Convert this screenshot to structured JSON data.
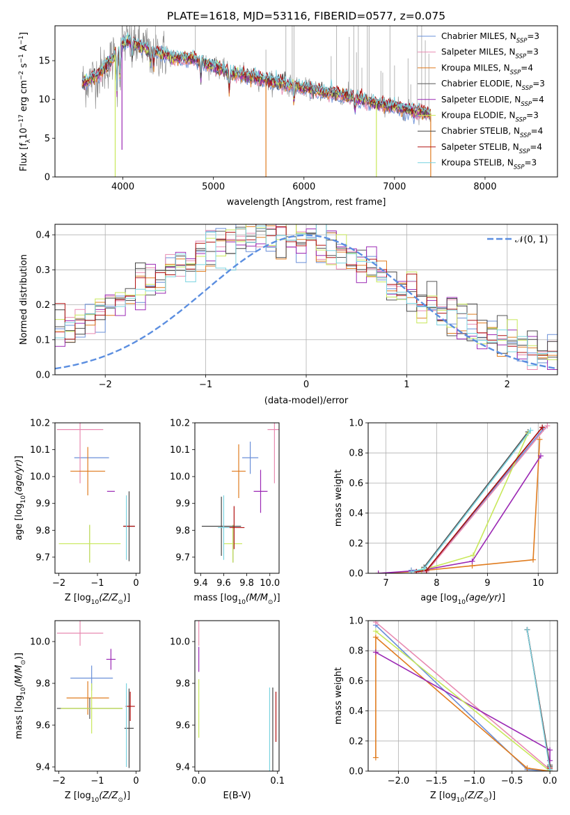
{
  "title": "PLATE=1618, MJD=53116, FIBERID=0577, z=0.075",
  "colors": {
    "Chabrier MILES": "#6a8fd8",
    "Salpeter MILES": "#e889b0",
    "Kroupa MILES": "#e07c1f",
    "Chabrier ELODIE": "#555555",
    "Salpeter ELODIE": "#9b28b4",
    "Kroupa ELODIE": "#c8e85a",
    "Chabrier STELIB": "#444444",
    "Salpeter STELIB": "#b01010",
    "Kroupa STELIB": "#7ad3e0",
    "observed": "#8c8c8c",
    "gauss": "#5b8ee0"
  },
  "chart_data": [
    {
      "type": "line",
      "xlabel": "wavelength [Angstrom, rest frame]",
      "ylabel": "Flux [f_λ10^-17 erg cm^-2 s^-1 A^-1]",
      "xlim": [
        3250,
        8800
      ],
      "ylim": [
        0,
        19.5
      ],
      "xticks": [
        4000,
        5000,
        6000,
        7000,
        8000
      ],
      "yticks": [
        0,
        5,
        10,
        15
      ],
      "legend_position": "top-right",
      "legend": [
        "Chabrier MILES, N_SSP=3",
        "Salpeter MILES, N_SSP=3",
        "Kroupa MILES, N_SSP=4",
        "Chabrier ELODIE, N_SSP=3",
        "Salpeter ELODIE, N_SSP=4",
        "Kroupa ELODIE, N_SSP=3",
        "Chabrier STELIB, N_SSP=4",
        "Salpeter STELIB, N_SSP=4",
        "Kroupa STELIB, N_SSP=3"
      ],
      "continuum": {
        "x": [
          3550,
          3700,
          3800,
          3900,
          4000,
          4050,
          4200,
          4400,
          4600,
          4800,
          5000,
          5200,
          5400,
          5600,
          5800,
          6000,
          6200,
          6400,
          6600,
          6800,
          7000,
          7200,
          7400
        ],
        "y": [
          12.0,
          13.0,
          14.0,
          15.5,
          17.2,
          17.6,
          16.8,
          16.0,
          15.3,
          15.2,
          14.3,
          13.4,
          13.0,
          12.4,
          12.0,
          11.5,
          11.0,
          10.6,
          10.0,
          9.5,
          9.0,
          8.5,
          8.2
        ]
      },
      "model_range": [
        3550,
        7400
      ],
      "observed_range": [
        3550,
        7400
      ]
    },
    {
      "type": "histogram",
      "xlabel": "(data-model)/error",
      "ylabel": "Normed distribution",
      "xlim": [
        -2.5,
        2.5
      ],
      "ylim": [
        0,
        0.43
      ],
      "xticks": [
        -2,
        -1,
        0,
        1,
        2
      ],
      "yticks": [
        0.0,
        0.1,
        0.2,
        0.3,
        0.4
      ],
      "grid": true,
      "legend_position": "top-right",
      "legend": [
        "𝒩(0, 1)"
      ],
      "bin_width": 0.1
    },
    {
      "type": "scatter",
      "xlabel": "Z [log10(Z/Z⊙)]",
      "ylabel": "age [log10(age/yr)]",
      "xlim": [
        -2.1,
        0.1
      ],
      "ylim": [
        9.64,
        10.2
      ],
      "xticks": [
        -2,
        -1,
        0
      ],
      "yticks": [
        9.7,
        9.8,
        9.9,
        10.0,
        10.1,
        10.2
      ],
      "points": [
        {
          "model": "Chabrier MILES",
          "x": -1.15,
          "y": 10.07,
          "xerr": 0.45,
          "yerr": 0.0
        },
        {
          "model": "Salpeter MILES",
          "x": -1.45,
          "y": 10.175,
          "xerr": 0.6,
          "yerr": 0.2
        },
        {
          "model": "Kroupa MILES",
          "x": -1.25,
          "y": 10.02,
          "xerr": 0.45,
          "yerr": 0.09
        },
        {
          "model": "Chabrier ELODIE",
          "x": -1.2,
          "y": 9.75,
          "xerr": 0.0,
          "yerr": 0.07
        },
        {
          "model": "Salpeter ELODIE",
          "x": -0.65,
          "y": 9.945,
          "xerr": 0.1,
          "yerr": 0.0
        },
        {
          "model": "Kroupa ELODIE",
          "x": -1.2,
          "y": 9.75,
          "xerr": 0.8,
          "yerr": 0.07
        },
        {
          "model": "Chabrier STELIB",
          "x": -0.18,
          "y": 9.815,
          "xerr": 0.15,
          "yerr": 0.13
        },
        {
          "model": "Salpeter STELIB",
          "x": -0.18,
          "y": 9.815,
          "xerr": 0.15,
          "yerr": 0.0
        },
        {
          "model": "Kroupa STELIB",
          "x": -0.25,
          "y": 9.81,
          "xerr": 0.0,
          "yerr": 0.12
        }
      ]
    },
    {
      "type": "scatter",
      "xlabel": "mass [log10(M/M⊙)]",
      "ylabel": "",
      "xlim": [
        9.35,
        10.08
      ],
      "ylim": [
        9.64,
        10.2
      ],
      "xticks": [
        9.4,
        9.6,
        9.8,
        10.0
      ],
      "yticks": [
        9.7,
        9.8,
        9.9,
        10.0,
        10.1,
        10.2
      ],
      "points": [
        {
          "model": "Chabrier MILES",
          "x": 9.83,
          "y": 10.07,
          "xerr": 0.07,
          "yerr": 0.06
        },
        {
          "model": "Salpeter MILES",
          "x": 10.04,
          "y": 10.175,
          "xerr": 0.06,
          "yerr": 0.2
        },
        {
          "model": "Kroupa MILES",
          "x": 9.73,
          "y": 10.02,
          "xerr": 0.06,
          "yerr": 0.1
        },
        {
          "model": "Chabrier ELODIE",
          "x": 9.68,
          "y": 9.75,
          "xerr": 0.0,
          "yerr": 0.07
        },
        {
          "model": "Salpeter ELODIE",
          "x": 9.92,
          "y": 9.945,
          "xerr": 0.06,
          "yerr": 0.08
        },
        {
          "model": "Kroupa ELODIE",
          "x": 9.68,
          "y": 9.75,
          "xerr": 0.08,
          "yerr": 0.07
        },
        {
          "model": "Chabrier STELIB",
          "x": 9.58,
          "y": 9.815,
          "xerr": 0.17,
          "yerr": 0.11
        },
        {
          "model": "Salpeter STELIB",
          "x": 9.69,
          "y": 9.81,
          "xerr": 0.09,
          "yerr": 0.08
        },
        {
          "model": "Kroupa STELIB",
          "x": 9.6,
          "y": 9.81,
          "xerr": 0.05,
          "yerr": 0.12
        }
      ]
    },
    {
      "type": "line",
      "xlabel": "age [log10(age/yr)]",
      "ylabel": "mass weight",
      "xlim": [
        6.65,
        10.38
      ],
      "ylim": [
        0,
        1.0
      ],
      "xticks": [
        7,
        8,
        9,
        10
      ],
      "yticks": [
        0.0,
        0.2,
        0.4,
        0.6,
        0.8,
        1.0
      ],
      "grid": true,
      "series": [
        {
          "model": "Chabrier MILES",
          "x": [
            7.5,
            7.8,
            10.1
          ],
          "y": [
            0.02,
            0.02,
            0.96
          ]
        },
        {
          "model": "Salpeter MILES",
          "x": [
            7.5,
            7.8,
            10.18
          ],
          "y": [
            0.01,
            0.01,
            0.98
          ]
        },
        {
          "model": "Kroupa MILES",
          "x": [
            6.85,
            7.5,
            8.7,
            9.9,
            10.03
          ],
          "y": [
            0.0,
            0.01,
            0.05,
            0.09,
            0.89
          ]
        },
        {
          "model": "Chabrier ELODIE",
          "x": [
            7.75,
            9.8
          ],
          "y": [
            0.04,
            0.94
          ]
        },
        {
          "model": "Salpeter ELODIE",
          "x": [
            6.85,
            7.7,
            8.7,
            10.05
          ],
          "y": [
            0.0,
            0.02,
            0.08,
            0.78
          ]
        },
        {
          "model": "Kroupa ELODIE",
          "x": [
            7.7,
            8.72,
            9.8
          ],
          "y": [
            0.02,
            0.12,
            0.93
          ]
        },
        {
          "model": "Chabrier STELIB",
          "x": [
            7.6,
            7.8,
            10.08
          ],
          "y": [
            0.01,
            0.02,
            0.97
          ]
        },
        {
          "model": "Salpeter STELIB",
          "x": [
            7.6,
            7.8,
            10.08
          ],
          "y": [
            0.01,
            0.02,
            0.97
          ]
        },
        {
          "model": "Kroupa STELIB",
          "x": [
            7.5,
            7.75,
            9.85
          ],
          "y": [
            0.01,
            0.03,
            0.95
          ]
        }
      ]
    },
    {
      "type": "scatter",
      "xlabel": "Z [log10(Z/Z⊙)]",
      "ylabel": "mass [log10(M/M⊙)]",
      "xlim": [
        -2.1,
        0.1
      ],
      "ylim": [
        9.38,
        10.1
      ],
      "xticks": [
        -2,
        -1,
        0
      ],
      "yticks": [
        9.4,
        9.6,
        9.8,
        10.0
      ],
      "points": [
        {
          "model": "Chabrier MILES",
          "x": -1.15,
          "y": 9.825,
          "xerr": 0.55,
          "yerr": 0.06
        },
        {
          "model": "Salpeter MILES",
          "x": -1.45,
          "y": 10.04,
          "xerr": 0.6,
          "yerr": 0.06
        },
        {
          "model": "Kroupa MILES",
          "x": -1.25,
          "y": 9.73,
          "xerr": 0.55,
          "yerr": 0.08
        },
        {
          "model": "Chabrier ELODIE",
          "x": -1.2,
          "y": 9.68,
          "xerr": 0.85,
          "yerr": 0.05
        },
        {
          "model": "Salpeter ELODIE",
          "x": -0.65,
          "y": 9.915,
          "xerr": 0.12,
          "yerr": 0.05
        },
        {
          "model": "Kroupa ELODIE",
          "x": -1.15,
          "y": 9.68,
          "xerr": 0.8,
          "yerr": 0.12
        },
        {
          "model": "Chabrier STELIB",
          "x": -0.18,
          "y": 9.585,
          "xerr": 0.12,
          "yerr": 0.19
        },
        {
          "model": "Salpeter STELIB",
          "x": -0.15,
          "y": 9.69,
          "xerr": 0.12,
          "yerr": 0.07
        },
        {
          "model": "Kroupa STELIB",
          "x": -0.25,
          "y": 9.6,
          "xerr": 0.0,
          "yerr": 0.2
        }
      ]
    },
    {
      "type": "scatter",
      "xlabel": "E(B-V)",
      "ylabel": "",
      "xlim": [
        -0.005,
        0.102
      ],
      "ylim": [
        9.38,
        10.1
      ],
      "xticks": [
        0.0,
        0.1
      ],
      "yticks": [
        9.4,
        9.6,
        9.8,
        10.0
      ],
      "points": [
        {
          "model": "Salpeter MILES",
          "x": 0.0,
          "y": 10.04,
          "xerr": 0.0,
          "yerr": 0.06
        },
        {
          "model": "Salpeter ELODIE",
          "x": 0.0,
          "y": 9.915,
          "xerr": 0.0,
          "yerr": 0.06
        },
        {
          "model": "Kroupa ELODIE",
          "x": 0.0,
          "y": 9.68,
          "xerr": 0.0,
          "yerr": 0.14
        },
        {
          "model": "Kroupa STELIB",
          "x": 0.09,
          "y": 9.58,
          "xerr": 0.0,
          "yerr": 0.2
        },
        {
          "model": "Chabrier STELIB",
          "x": 0.094,
          "y": 9.58,
          "xerr": 0.0,
          "yerr": 0.2
        },
        {
          "model": "Salpeter STELIB",
          "x": 0.098,
          "y": 9.64,
          "xerr": 0.0,
          "yerr": 0.12
        }
      ]
    },
    {
      "type": "line",
      "xlabel": "Z [log10(Z/Z⊙)]",
      "ylabel": "mass weight",
      "xlim": [
        -2.4,
        0.1
      ],
      "ylim": [
        0,
        1.0
      ],
      "xticks": [
        -2.0,
        -1.5,
        -1.0,
        -0.5,
        0.0
      ],
      "yticks": [
        0.0,
        0.2,
        0.4,
        0.6,
        0.8,
        1.0
      ],
      "grid": true,
      "series": [
        {
          "model": "Chabrier MILES",
          "x": [
            -2.3,
            -0.3,
            0.0
          ],
          "y": [
            0.97,
            0.01,
            0.0
          ]
        },
        {
          "model": "Salpeter MILES",
          "x": [
            -2.3,
            0.0,
            0.0
          ],
          "y": [
            0.99,
            0.01,
            0.0
          ]
        },
        {
          "model": "Kroupa MILES",
          "x": [
            -2.3,
            -2.3,
            -0.3,
            0.0
          ],
          "y": [
            0.09,
            0.89,
            0.02,
            0.0
          ]
        },
        {
          "model": "Chabrier ELODIE",
          "x": [
            -0.3,
            0.0
          ],
          "y": [
            0.94,
            0.04
          ]
        },
        {
          "model": "Salpeter ELODIE",
          "x": [
            -2.3,
            0.0,
            0.0
          ],
          "y": [
            0.79,
            0.14,
            0.07
          ]
        },
        {
          "model": "Kroupa ELODIE",
          "x": [
            -2.3,
            0.0
          ],
          "y": [
            0.93,
            0.0
          ]
        },
        {
          "model": "Chabrier STELIB",
          "x": [
            -0.3,
            0.0
          ],
          "y": [
            0.94,
            0.03
          ]
        },
        {
          "model": "Salpeter STELIB",
          "x": [
            -0.3,
            0.0
          ],
          "y": [
            0.94,
            0.02
          ]
        },
        {
          "model": "Kroupa STELIB",
          "x": [
            -0.3,
            0.0
          ],
          "y": [
            0.94,
            0.01
          ]
        }
      ]
    }
  ]
}
